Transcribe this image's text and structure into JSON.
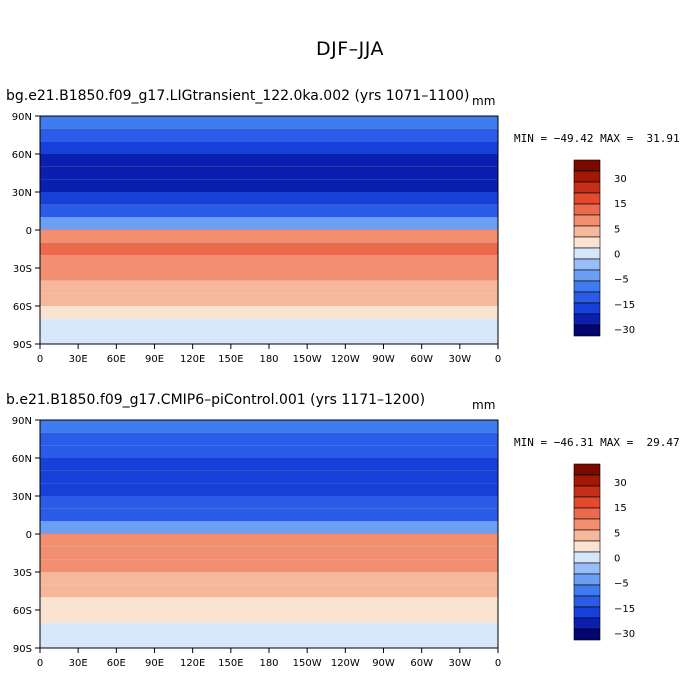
{
  "figure": {
    "title": "DJF–JJA"
  },
  "panels": [
    {
      "case_title": "bg.e21.B1850.f09_g17.LIGtransient_122.0ka.002 (yrs 1071–1100)",
      "units": "mm",
      "min_label": "MIN = −49.42",
      "max_label": "MAX =  31.91"
    },
    {
      "case_title": "b.e21.B1850.f09_g17.CMIP6–piControl.001 (yrs 1171–1200)",
      "units": "mm",
      "min_label": "MIN = −46.31",
      "max_label": "MAX =  29.47"
    }
  ],
  "chart_data": [
    {
      "type": "heatmap",
      "title": "DJF–JJA",
      "subtitle": "bg.e21.B1850.f09_g17.LIGtransient_122.0ka.002 (yrs 1071–1100)",
      "units": "mm",
      "min": -49.42,
      "max": 31.91,
      "x_ticks": [
        "0",
        "30E",
        "60E",
        "90E",
        "120E",
        "150E",
        "180",
        "150W",
        "120W",
        "90W",
        "60W",
        "30W",
        "0"
      ],
      "y_ticks": [
        "90N",
        "60N",
        "30N",
        "0",
        "30S",
        "60S",
        "90S"
      ],
      "x_range": [
        0,
        360
      ],
      "y_range": [
        -90,
        90
      ],
      "colorbar_levels": [
        -35,
        -30,
        -25,
        -20,
        -15,
        -10,
        -5,
        -2.5,
        2.5,
        5,
        10,
        15,
        20,
        25,
        30,
        35
      ],
      "colorbar_labels": [
        "30",
        "15",
        "5",
        "0",
        "−5",
        "−15",
        "−30"
      ],
      "zonal_pattern": {
        "lat": [
          85,
          75,
          65,
          55,
          45,
          35,
          25,
          15,
          5,
          -5,
          -15,
          -25,
          -35,
          -45,
          -55,
          -65,
          -75,
          -85
        ],
        "value": [
          -15,
          -20,
          -25,
          -27,
          -28,
          -27,
          -22,
          -18,
          -8,
          12,
          15,
          14,
          10,
          7,
          5,
          3,
          2,
          0
        ]
      }
    },
    {
      "type": "heatmap",
      "title": "DJF–JJA",
      "subtitle": "b.e21.B1850.f09_g17.CMIP6–piControl.001 (yrs 1171–1200)",
      "units": "mm",
      "min": -46.31,
      "max": 29.47,
      "x_ticks": [
        "0",
        "30E",
        "60E",
        "90E",
        "120E",
        "150E",
        "180",
        "150W",
        "120W",
        "90W",
        "60W",
        "30W",
        "0"
      ],
      "y_ticks": [
        "90N",
        "60N",
        "30N",
        "0",
        "30S",
        "60S",
        "90S"
      ],
      "x_range": [
        0,
        360
      ],
      "y_range": [
        -90,
        90
      ],
      "colorbar_levels": [
        -35,
        -30,
        -25,
        -20,
        -15,
        -10,
        -5,
        -2.5,
        2.5,
        5,
        10,
        15,
        20,
        25,
        30,
        35
      ],
      "colorbar_labels": [
        "30",
        "15",
        "5",
        "0",
        "−5",
        "−15",
        "−30"
      ],
      "zonal_pattern": {
        "lat": [
          85,
          75,
          65,
          55,
          45,
          35,
          25,
          15,
          5,
          -5,
          -15,
          -25,
          -35,
          -45,
          -55,
          -65,
          -75,
          -85
        ],
        "value": [
          -12,
          -16,
          -20,
          -24,
          -25,
          -24,
          -20,
          -16,
          -6,
          10,
          13,
          12,
          9,
          6,
          4,
          3,
          2,
          0
        ]
      }
    }
  ],
  "colors": {
    "palette": [
      "#05056e",
      "#0a1fb0",
      "#1740d8",
      "#2a5ce8",
      "#3f7cf0",
      "#6a9ff3",
      "#99bef7",
      "#d6e6fb",
      "#fbe3d2",
      "#f6b79b",
      "#f18f70",
      "#ea6a4b",
      "#e14a2f",
      "#c62e17",
      "#a11807",
      "#7a0a00"
    ]
  }
}
